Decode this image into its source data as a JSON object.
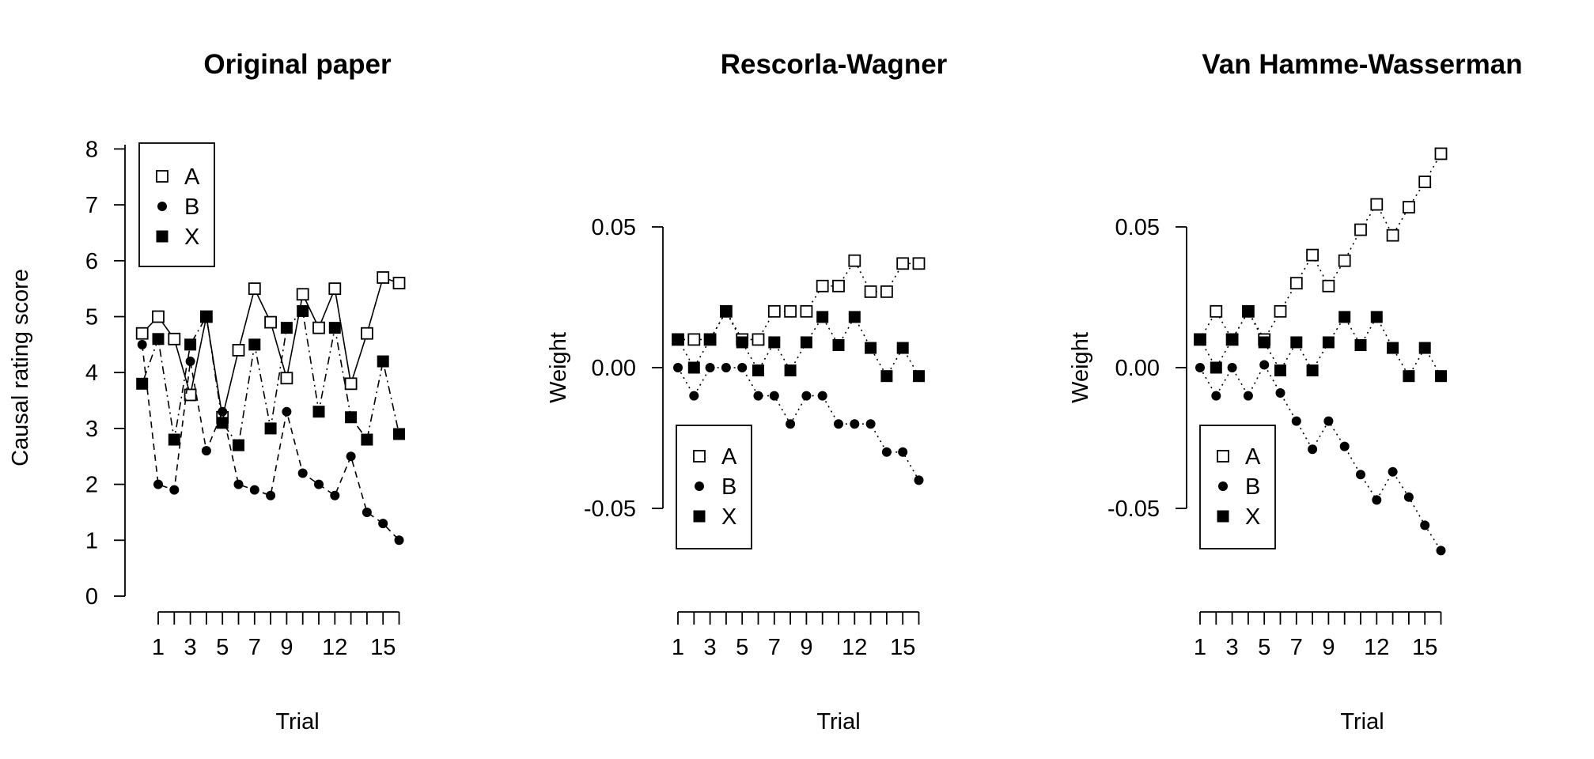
{
  "chart_data": [
    {
      "type": "line",
      "title": "Original paper",
      "xlabel": "Trial",
      "ylabel": "Causal rating score",
      "ylim": [
        0,
        8
      ],
      "yticks": [
        "0",
        "1",
        "2",
        "3",
        "4",
        "5",
        "6",
        "7",
        "8"
      ],
      "xticks": [
        "1",
        "3",
        "5",
        "7",
        "9",
        "12",
        "15"
      ],
      "legend": {
        "position": "top-left",
        "entries": [
          "A",
          "B",
          "X"
        ]
      },
      "series": [
        {
          "name": "A",
          "marker": "open-square",
          "line": "solid",
          "x": [
            0,
            1,
            2,
            3,
            4,
            5,
            6,
            7,
            8,
            9,
            10,
            11,
            12,
            13,
            14,
            15,
            16
          ],
          "values": [
            4.7,
            5.0,
            4.6,
            3.6,
            5.0,
            3.2,
            4.4,
            5.5,
            4.9,
            3.9,
            5.4,
            4.8,
            5.5,
            3.8,
            4.7,
            5.7,
            5.6
          ]
        },
        {
          "name": "B",
          "marker": "filled-circle",
          "line": "dashed",
          "x": [
            0,
            1,
            2,
            3,
            4,
            5,
            6,
            7,
            8,
            9,
            10,
            11,
            12,
            13,
            14,
            15,
            16
          ],
          "values": [
            4.5,
            2.0,
            1.9,
            4.2,
            2.6,
            3.3,
            2.0,
            1.9,
            1.8,
            3.3,
            2.2,
            2.0,
            1.8,
            2.5,
            1.5,
            1.3,
            1.0
          ]
        },
        {
          "name": "X",
          "marker": "filled-square",
          "line": "dotdash",
          "x": [
            0,
            1,
            2,
            3,
            4,
            5,
            6,
            7,
            8,
            9,
            10,
            11,
            12,
            13,
            14,
            15,
            16
          ],
          "values": [
            3.8,
            4.6,
            2.8,
            4.5,
            5.0,
            3.1,
            2.7,
            4.5,
            3.0,
            4.8,
            5.1,
            3.3,
            4.8,
            3.2,
            2.8,
            4.2,
            2.9
          ]
        }
      ]
    },
    {
      "type": "line",
      "title": "Rescorla-Wagner",
      "xlabel": "Trial",
      "ylabel": "Weight",
      "ylim": [
        -0.08,
        0.08
      ],
      "yticks": [
        "-0.05",
        "0.00",
        "0.05"
      ],
      "xticks": [
        "1",
        "3",
        "5",
        "7",
        "9",
        "12",
        "15"
      ],
      "legend": {
        "position": "bottom-left",
        "entries": [
          "A",
          "B",
          "X"
        ]
      },
      "series": [
        {
          "name": "A",
          "marker": "open-square",
          "line": "dotted",
          "x": [
            1,
            2,
            3,
            4,
            5,
            6,
            7,
            8,
            9,
            10,
            11,
            12,
            13,
            14,
            15,
            16
          ],
          "values": [
            0.01,
            0.01,
            0.01,
            0.02,
            0.01,
            0.01,
            0.02,
            0.02,
            0.02,
            0.029,
            0.029,
            0.038,
            0.027,
            0.027,
            0.037,
            0.037
          ]
        },
        {
          "name": "B",
          "marker": "filled-circle",
          "line": "dotted",
          "x": [
            1,
            2,
            3,
            4,
            5,
            6,
            7,
            8,
            9,
            10,
            11,
            12,
            13,
            14,
            15,
            16
          ],
          "values": [
            0.0,
            -0.01,
            0.0,
            0.0,
            0.0,
            -0.01,
            -0.01,
            -0.02,
            -0.01,
            -0.01,
            -0.02,
            -0.02,
            -0.02,
            -0.03,
            -0.03,
            -0.04
          ]
        },
        {
          "name": "X",
          "marker": "filled-square",
          "line": "dotted",
          "x": [
            1,
            2,
            3,
            4,
            5,
            6,
            7,
            8,
            9,
            10,
            11,
            12,
            13,
            14,
            15,
            16
          ],
          "values": [
            0.01,
            0.0,
            0.01,
            0.02,
            0.009,
            -0.001,
            0.009,
            -0.001,
            0.009,
            0.018,
            0.008,
            0.018,
            0.007,
            -0.003,
            0.007,
            -0.003
          ]
        }
      ]
    },
    {
      "type": "line",
      "title": "Van Hamme-Wasserman",
      "xlabel": "Trial",
      "ylabel": "Weight",
      "ylim": [
        -0.08,
        0.08
      ],
      "yticks": [
        "-0.05",
        "0.00",
        "0.05"
      ],
      "xticks": [
        "1",
        "3",
        "5",
        "7",
        "9",
        "12",
        "15"
      ],
      "legend": {
        "position": "bottom-left",
        "entries": [
          "A",
          "B",
          "X"
        ]
      },
      "series": [
        {
          "name": "A",
          "marker": "open-square",
          "line": "dotted",
          "x": [
            1,
            2,
            3,
            4,
            5,
            6,
            7,
            8,
            9,
            10,
            11,
            12,
            13,
            14,
            15,
            16
          ],
          "values": [
            0.01,
            0.02,
            0.01,
            0.02,
            0.01,
            0.02,
            0.03,
            0.04,
            0.029,
            0.038,
            0.049,
            0.058,
            0.047,
            0.057,
            0.066,
            0.076
          ]
        },
        {
          "name": "B",
          "marker": "filled-circle",
          "line": "dotted",
          "x": [
            1,
            2,
            3,
            4,
            5,
            6,
            7,
            8,
            9,
            10,
            11,
            12,
            13,
            14,
            15,
            16
          ],
          "values": [
            0.0,
            -0.01,
            0.0,
            -0.01,
            0.001,
            -0.009,
            -0.019,
            -0.029,
            -0.019,
            -0.028,
            -0.038,
            -0.047,
            -0.037,
            -0.046,
            -0.056,
            -0.065
          ]
        },
        {
          "name": "X",
          "marker": "filled-square",
          "line": "dotted",
          "x": [
            1,
            2,
            3,
            4,
            5,
            6,
            7,
            8,
            9,
            10,
            11,
            12,
            13,
            14,
            15,
            16
          ],
          "values": [
            0.01,
            0.0,
            0.01,
            0.02,
            0.009,
            -0.001,
            0.009,
            -0.001,
            0.009,
            0.018,
            0.008,
            0.018,
            0.007,
            -0.003,
            0.007,
            -0.003
          ]
        }
      ]
    }
  ]
}
